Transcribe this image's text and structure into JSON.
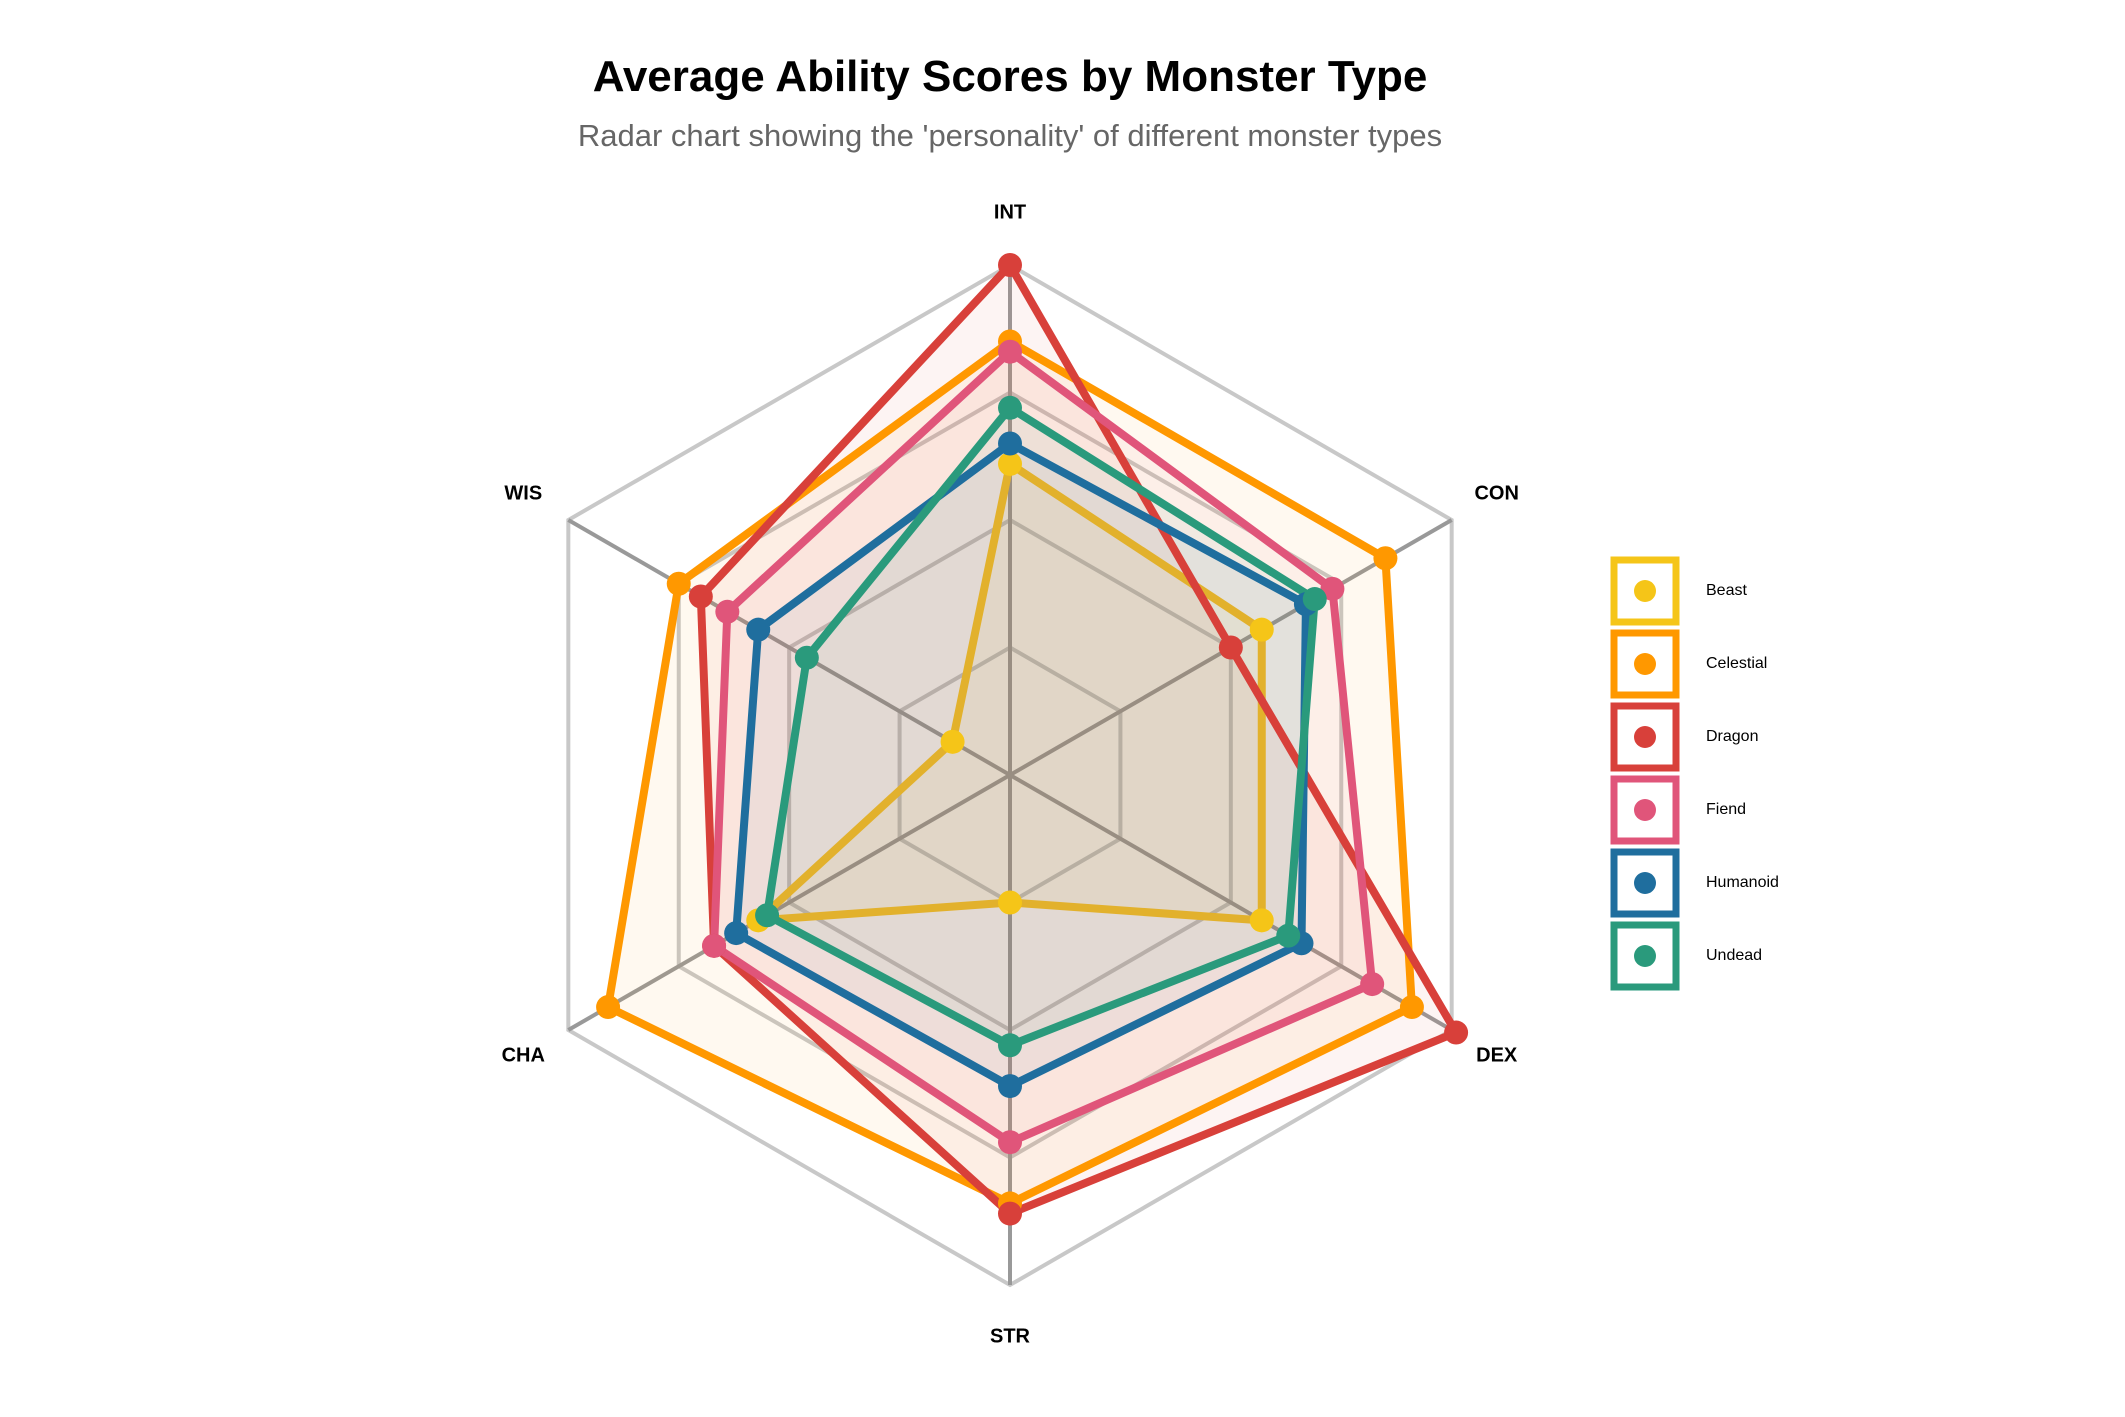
{
  "chart_data": {
    "type": "radar",
    "title": "Average Ability Scores by Monster Type",
    "subtitle": "Radar chart showing the 'personality' of different monster types",
    "axes": [
      "INT",
      "CON",
      "DEX",
      "STR",
      "CHA",
      "WIS"
    ],
    "rings": 4,
    "range": [
      0,
      1
    ],
    "grid": true,
    "legend_position": "right",
    "series": [
      {
        "name": "Beast",
        "color": "#F5C518",
        "line_color": "#E2B12C",
        "values": [
          0.61,
          0.57,
          0.57,
          0.25,
          0.57,
          0.13
        ]
      },
      {
        "name": "Celestial",
        "color": "#FF9800",
        "line_color": "#FF9800",
        "values": [
          0.85,
          0.85,
          0.91,
          0.84,
          0.91,
          0.75
        ]
      },
      {
        "name": "Dragon",
        "color": "#D8403A",
        "line_color": "#D8403A",
        "values": [
          1.0,
          0.5,
          1.01,
          0.86,
          0.67,
          0.7
        ]
      },
      {
        "name": "Fiend",
        "color": "#E0557A",
        "line_color": "#E0557A",
        "values": [
          0.83,
          0.73,
          0.82,
          0.72,
          0.67,
          0.64
        ]
      },
      {
        "name": "Humanoid",
        "color": "#1F6E9E",
        "line_color": "#1F6E9E",
        "values": [
          0.65,
          0.67,
          0.66,
          0.61,
          0.62,
          0.57
        ]
      },
      {
        "name": "Undead",
        "color": "#2A9A7C",
        "line_color": "#2A9A7C",
        "values": [
          0.72,
          0.69,
          0.63,
          0.53,
          0.55,
          0.46
        ]
      }
    ]
  }
}
